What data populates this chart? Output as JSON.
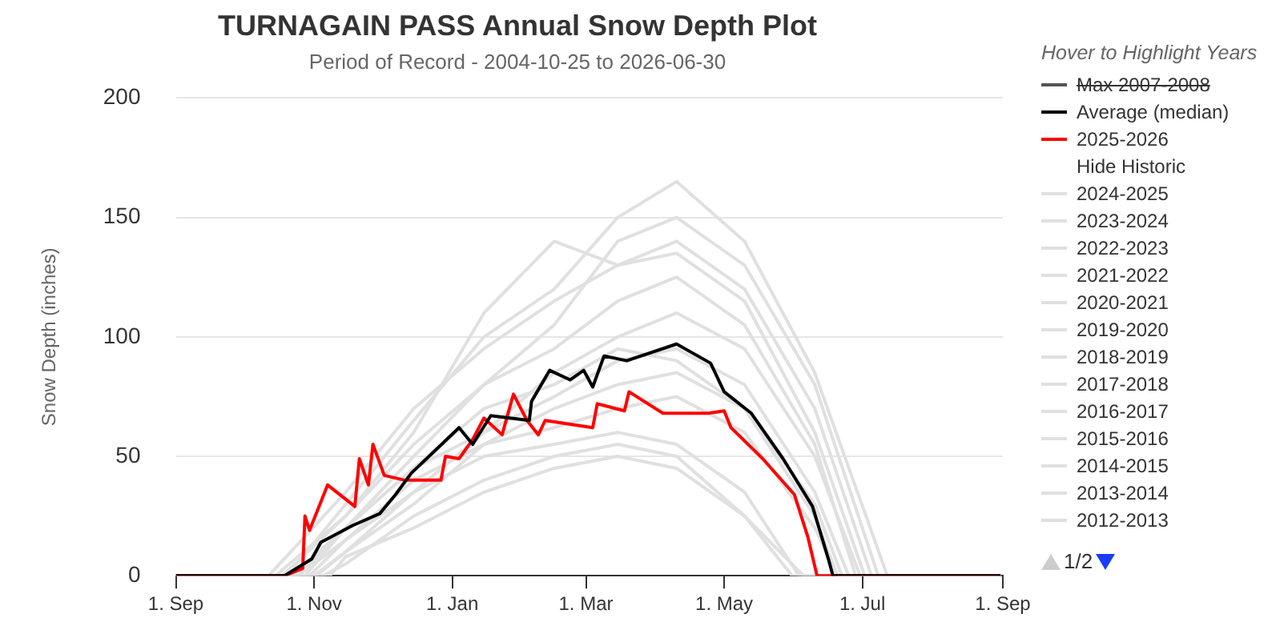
{
  "chart_data": {
    "type": "line",
    "title": "TURNAGAIN PASS Annual Snow Depth Plot",
    "subtitle": "Period of Record - 2004-10-25 to 2026-06-30",
    "ylabel": "Snow Depth (inches)",
    "legend_title": "Hover to Highlight Years",
    "annotations": [
      "Max 2007-2008",
      "Hide Historic",
      "1/2"
    ],
    "xlim": [
      "2025-09-01",
      "2026-09-01"
    ],
    "xticks": [
      {
        "value": "2025-09-01",
        "label": "1. Sep"
      },
      {
        "value": "2025-11-01",
        "label": "1. Nov"
      },
      {
        "value": "2026-01-01",
        "label": "1. Jan"
      },
      {
        "value": "2026-03-01",
        "label": "1. Mar"
      },
      {
        "value": "2026-05-01",
        "label": "1. May"
      },
      {
        "value": "2026-07-01",
        "label": "1. Jul"
      },
      {
        "value": "2026-09-01",
        "label": "1. Sep"
      }
    ],
    "ylim": [
      0,
      200
    ],
    "yticks": [
      0,
      50,
      100,
      150,
      200
    ],
    "grid": "y",
    "legend": "right",
    "marker": "none",
    "line_style": "solid",
    "series": [
      {
        "name": "Average (median)",
        "color": "#000000",
        "x": [
          "2025-09-01",
          "2025-10-19",
          "2025-10-31",
          "2025-11-04",
          "2025-11-18",
          "2025-11-30",
          "2025-12-07",
          "2025-12-14",
          "2025-12-24",
          "2026-01-04",
          "2026-01-10",
          "2026-01-18",
          "2026-02-04",
          "2026-02-05",
          "2026-02-13",
          "2026-02-22",
          "2026-02-28",
          "2026-03-04",
          "2026-03-09",
          "2026-03-19",
          "2026-04-10",
          "2026-04-25",
          "2026-05-01",
          "2026-05-13",
          "2026-05-27",
          "2026-06-09",
          "2026-06-16",
          "2026-06-18",
          "2026-08-31"
        ],
        "values": [
          0,
          0,
          7,
          14,
          21,
          26,
          34,
          43,
          52,
          62,
          55,
          67,
          65,
          73,
          86,
          82,
          86,
          79,
          92,
          90,
          97,
          89,
          77,
          68,
          49,
          29,
          7,
          0,
          0
        ]
      },
      {
        "name": "2025-2026",
        "color": "#ff0000",
        "x": [
          "2025-09-01",
          "2025-10-19",
          "2025-10-27",
          "2025-10-28",
          "2025-10-30",
          "2025-11-07",
          "2025-11-19",
          "2025-11-21",
          "2025-11-25",
          "2025-11-27",
          "2025-12-02",
          "2025-12-11",
          "2025-12-27",
          "2025-12-29",
          "2026-01-04",
          "2026-01-10",
          "2026-01-15",
          "2026-01-23",
          "2026-01-28",
          "2026-02-03",
          "2026-02-08",
          "2026-02-11",
          "2026-03-04",
          "2026-03-06",
          "2026-03-18",
          "2026-03-20",
          "2026-04-04",
          "2026-04-24",
          "2026-05-01",
          "2026-05-04",
          "2026-05-18",
          "2026-06-01",
          "2026-06-07",
          "2026-06-11",
          "2026-08-31"
        ],
        "values": [
          0,
          0,
          3,
          25,
          19,
          38,
          29,
          49,
          38,
          55,
          42,
          40,
          40,
          50,
          49,
          57,
          66,
          59,
          76,
          65,
          59,
          65,
          62,
          72,
          69,
          77,
          68,
          68,
          69,
          62,
          49,
          34,
          16,
          0,
          0
        ]
      },
      {
        "name": "2024-2025",
        "color": "#e0e0e0",
        "x": [
          "2025-09-01",
          "2025-10-25",
          "2025-11-15",
          "2025-12-15",
          "2026-01-15",
          "2026-02-15",
          "2026-03-15",
          "2026-04-10",
          "2026-05-10",
          "2026-06-10",
          "2026-06-20",
          "2026-08-31"
        ],
        "values": [
          0,
          0,
          15,
          40,
          55,
          62,
          70,
          75,
          60,
          20,
          0,
          0
        ]
      },
      {
        "name": "2023-2024",
        "color": "#e0e0e0",
        "x": [
          "2025-09-01",
          "2025-10-15",
          "2025-11-15",
          "2025-12-15",
          "2026-01-15",
          "2026-02-15",
          "2026-03-15",
          "2026-04-10",
          "2026-05-10",
          "2026-06-10",
          "2026-07-08",
          "2026-08-31"
        ],
        "values": [
          0,
          0,
          25,
          55,
          80,
          105,
          140,
          150,
          130,
          80,
          0,
          0
        ]
      },
      {
        "name": "2022-2023",
        "color": "#e0e0e0",
        "x": [
          "2025-09-01",
          "2025-11-01",
          "2025-11-15",
          "2025-12-15",
          "2026-01-15",
          "2026-02-15",
          "2026-03-15",
          "2026-04-10",
          "2026-05-10",
          "2026-06-10",
          "2026-06-30",
          "2026-08-31"
        ],
        "values": [
          0,
          0,
          10,
          35,
          60,
          85,
          100,
          110,
          95,
          50,
          0,
          0
        ]
      },
      {
        "name": "2021-2022",
        "color": "#e0e0e0",
        "x": [
          "2025-09-01",
          "2025-10-20",
          "2025-11-15",
          "2025-12-15",
          "2026-01-15",
          "2026-02-15",
          "2026-03-15",
          "2026-04-10",
          "2026-05-10",
          "2026-06-10",
          "2026-07-12",
          "2026-08-31"
        ],
        "values": [
          0,
          0,
          30,
          65,
          100,
          120,
          150,
          165,
          140,
          85,
          0,
          0
        ]
      },
      {
        "name": "2020-2021",
        "color": "#e0e0e0",
        "x": [
          "2025-09-01",
          "2025-10-28",
          "2025-11-15",
          "2025-12-15",
          "2026-01-15",
          "2026-02-15",
          "2026-03-15",
          "2026-04-10",
          "2026-05-10",
          "2026-06-10",
          "2026-06-20",
          "2026-08-31"
        ],
        "values": [
          0,
          0,
          20,
          45,
          70,
          80,
          95,
          90,
          70,
          25,
          0,
          0
        ]
      },
      {
        "name": "2019-2020",
        "color": "#e0e0e0",
        "x": [
          "2025-09-01",
          "2025-10-18",
          "2025-11-15",
          "2025-12-15",
          "2026-01-15",
          "2026-02-15",
          "2026-03-15",
          "2026-04-10",
          "2026-05-10",
          "2026-06-10",
          "2026-07-02",
          "2026-08-31"
        ],
        "values": [
          0,
          0,
          25,
          60,
          110,
          140,
          130,
          135,
          115,
          60,
          0,
          0
        ]
      },
      {
        "name": "2018-2019",
        "color": "#e0e0e0",
        "x": [
          "2025-09-01",
          "2025-11-05",
          "2025-11-15",
          "2025-12-15",
          "2026-01-15",
          "2026-02-15",
          "2026-03-15",
          "2026-04-10",
          "2026-05-10",
          "2026-06-05",
          "2026-08-31"
        ],
        "values": [
          0,
          0,
          5,
          25,
          40,
          50,
          55,
          50,
          25,
          0,
          0
        ]
      },
      {
        "name": "2017-2018",
        "color": "#e0e0e0",
        "x": [
          "2025-09-01",
          "2025-10-22",
          "2025-11-15",
          "2025-12-15",
          "2026-01-15",
          "2026-02-15",
          "2026-03-15",
          "2026-04-10",
          "2026-05-10",
          "2026-06-10",
          "2026-06-28",
          "2026-08-31"
        ],
        "values": [
          0,
          0,
          20,
          50,
          80,
          95,
          115,
          125,
          105,
          55,
          0,
          0
        ]
      },
      {
        "name": "2016-2017",
        "color": "#e0e0e0",
        "x": [
          "2025-09-01",
          "2025-11-02",
          "2025-11-15",
          "2025-12-15",
          "2026-01-15",
          "2026-02-15",
          "2026-03-15",
          "2026-04-10",
          "2026-05-10",
          "2026-06-10",
          "2026-06-22",
          "2026-08-31"
        ],
        "values": [
          0,
          0,
          10,
          30,
          55,
          70,
          80,
          85,
          70,
          30,
          0,
          0
        ]
      },
      {
        "name": "2015-2016",
        "color": "#e0e0e0",
        "x": [
          "2025-09-01",
          "2025-10-30",
          "2025-11-15",
          "2025-12-15",
          "2026-01-15",
          "2026-02-15",
          "2026-03-15",
          "2026-04-10",
          "2026-05-10",
          "2026-06-03",
          "2026-08-31"
        ],
        "values": [
          0,
          0,
          15,
          35,
          50,
          55,
          60,
          55,
          35,
          0,
          0
        ]
      },
      {
        "name": "2014-2015",
        "color": "#e0e0e0",
        "x": [
          "2025-09-01",
          "2025-11-08",
          "2025-11-15",
          "2025-12-15",
          "2026-01-15",
          "2026-02-15",
          "2026-03-15",
          "2026-04-10",
          "2026-05-10",
          "2026-05-31",
          "2026-08-31"
        ],
        "values": [
          0,
          0,
          8,
          20,
          35,
          45,
          50,
          45,
          25,
          0,
          0
        ]
      },
      {
        "name": "2013-2014",
        "color": "#e0e0e0",
        "x": [
          "2025-09-01",
          "2025-10-25",
          "2025-11-15",
          "2025-12-15",
          "2026-01-15",
          "2026-02-15",
          "2026-03-15",
          "2026-04-10",
          "2026-05-10",
          "2026-06-10",
          "2026-06-25",
          "2026-08-31"
        ],
        "values": [
          0,
          0,
          20,
          45,
          60,
          75,
          90,
          95,
          80,
          35,
          0,
          0
        ]
      },
      {
        "name": "2012-2013",
        "color": "#e0e0e0",
        "x": [
          "2025-09-01",
          "2025-10-12",
          "2025-11-15",
          "2025-12-15",
          "2026-01-15",
          "2026-02-15",
          "2026-03-15",
          "2026-04-10",
          "2026-05-10",
          "2026-06-10",
          "2026-07-05",
          "2026-08-31"
        ],
        "values": [
          0,
          0,
          35,
          70,
          95,
          115,
          130,
          140,
          120,
          70,
          0,
          0
        ]
      }
    ]
  }
}
